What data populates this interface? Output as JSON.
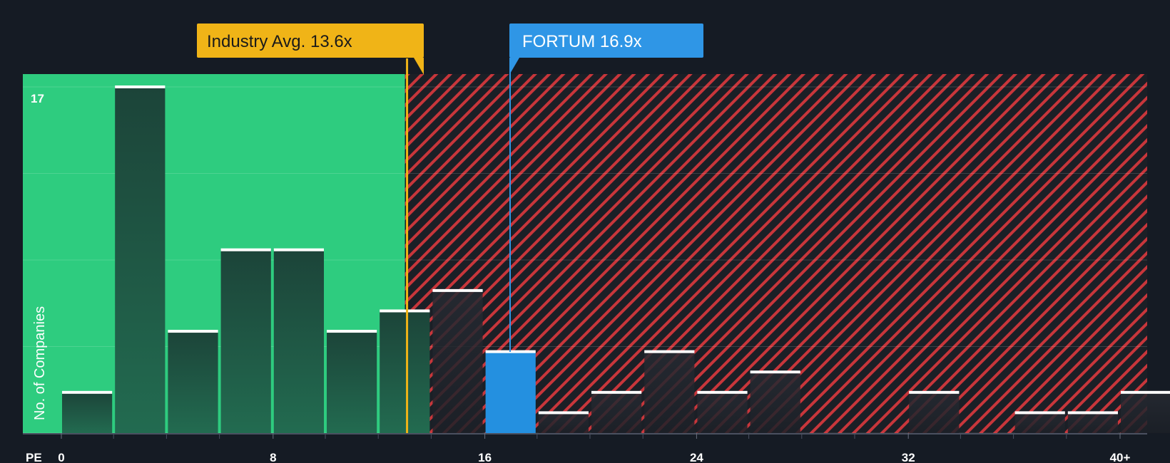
{
  "chart_data": {
    "type": "bar",
    "title": "",
    "xlabel": "PE",
    "ylabel": "No. of Companies",
    "xlim": [
      0,
      40
    ],
    "ylim": [
      0,
      17
    ],
    "bin_width": 2,
    "x_ticks": [
      {
        "value": 0,
        "label": "0"
      },
      {
        "value": 8,
        "label": "8"
      },
      {
        "value": 16,
        "label": "16"
      },
      {
        "value": 24,
        "label": "24"
      },
      {
        "value": 32,
        "label": "32"
      },
      {
        "value": 40,
        "label": "40+"
      }
    ],
    "y_max_label": "17",
    "bins": [
      {
        "x": 0,
        "count": 2
      },
      {
        "x": 2,
        "count": 17
      },
      {
        "x": 4,
        "count": 5
      },
      {
        "x": 6,
        "count": 9
      },
      {
        "x": 8,
        "count": 9
      },
      {
        "x": 10,
        "count": 5
      },
      {
        "x": 12,
        "count": 6
      },
      {
        "x": 14,
        "count": 7
      },
      {
        "x": 16,
        "count": 4,
        "highlight": true
      },
      {
        "x": 18,
        "count": 1
      },
      {
        "x": 20,
        "count": 2
      },
      {
        "x": 22,
        "count": 4
      },
      {
        "x": 24,
        "count": 2
      },
      {
        "x": 26,
        "count": 3
      },
      {
        "x": 32,
        "count": 2
      },
      {
        "x": 36,
        "count": 1
      },
      {
        "x": 38,
        "count": 1
      },
      {
        "x": 40,
        "count": 2
      }
    ],
    "industry_avg": {
      "value": 13.6,
      "label": "Industry Avg. 13.6x"
    },
    "company": {
      "value": 16.9,
      "label": "FORTUM 16.9x"
    }
  },
  "colors": {
    "background": "#151b24",
    "good_zone": "#2ecc7f",
    "bad_zone": "#e23d3d",
    "bar_dark": "#1b4a3c",
    "company_bar": "#2490e0",
    "industry": "#f0b417",
    "company": "#2f96e6"
  }
}
